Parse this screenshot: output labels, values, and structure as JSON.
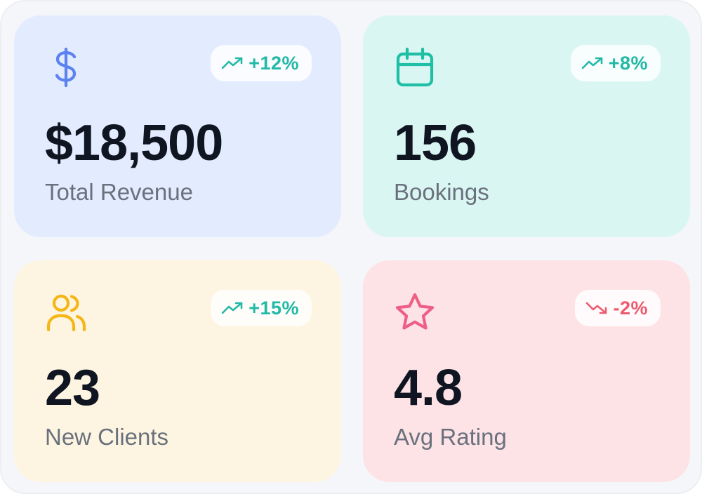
{
  "stats": [
    {
      "value": "$18,500",
      "label": "Total Revenue",
      "change": "+12%",
      "trend": "up",
      "icon": "dollar-icon",
      "bg_color": "#e3ebfe",
      "icon_color": "#5b82f0",
      "change_color": "#22b9a6"
    },
    {
      "value": "156",
      "label": "Bookings",
      "change": "+8%",
      "trend": "up",
      "icon": "calendar-icon",
      "bg_color": "#d9f6f2",
      "icon_color": "#1fbfa6",
      "change_color": "#22b9a6"
    },
    {
      "value": "23",
      "label": "New Clients",
      "change": "+15%",
      "trend": "up",
      "icon": "users-icon",
      "bg_color": "#fdf5e1",
      "icon_color": "#f5b616",
      "change_color": "#22b9a6"
    },
    {
      "value": "4.8",
      "label": "Avg Rating",
      "change": "-2%",
      "trend": "down",
      "icon": "star-icon",
      "bg_color": "#fde3e6",
      "icon_color": "#ee5f86",
      "change_color": "#ec5b6e"
    }
  ]
}
